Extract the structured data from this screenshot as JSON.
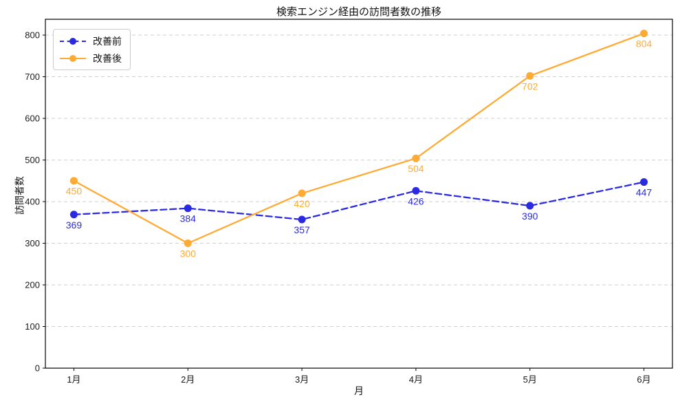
{
  "chart_data": {
    "type": "line",
    "title": "検索エンジン経由の訪問者数の推移",
    "xlabel": "月",
    "ylabel": "訪問者数",
    "categories": [
      "1月",
      "2月",
      "3月",
      "4月",
      "5月",
      "6月"
    ],
    "series": [
      {
        "name": "改善前",
        "values": [
          369,
          384,
          357,
          426,
          390,
          447
        ],
        "color": "#2a2ae0",
        "line_style": "dashed"
      },
      {
        "name": "改善後",
        "values": [
          450,
          300,
          420,
          504,
          702,
          804
        ],
        "color": "#ffaa33",
        "line_style": "solid"
      }
    ],
    "y_ticks": [
      0,
      100,
      200,
      300,
      400,
      500,
      600,
      700,
      800
    ],
    "ylim": [
      0,
      838
    ],
    "grid": true,
    "grid_axis": "y",
    "legend_position": "upper-left",
    "point_labels": true
  }
}
